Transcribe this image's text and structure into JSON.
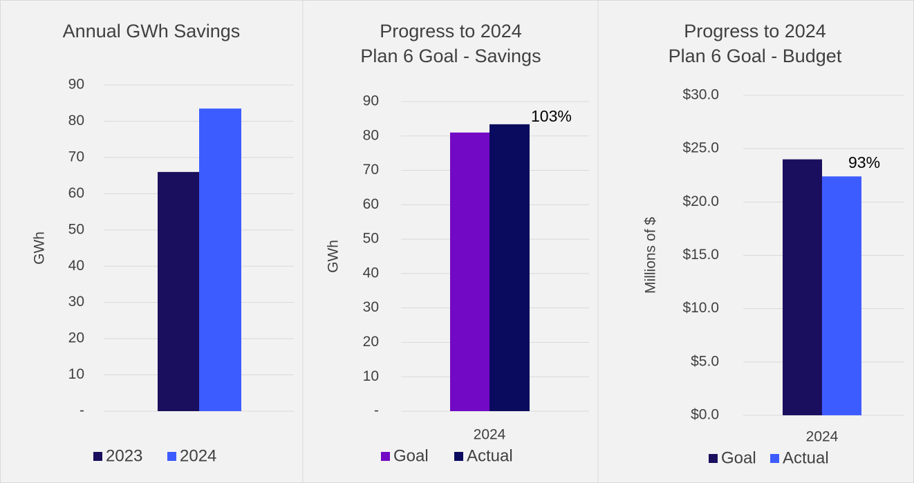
{
  "chart_data": [
    {
      "type": "bar",
      "title": [
        "Annual GWh Savings"
      ],
      "y_label": "GWh",
      "categories": [
        null
      ],
      "series": [
        {
          "name": "2023",
          "color": "#1a0f5e",
          "values": [
            66
          ]
        },
        {
          "name": "2024",
          "color": "#3d5cff",
          "values": [
            83.5
          ]
        }
      ],
      "ylim": [
        0,
        90
      ],
      "yticks": [
        {
          "value": 0,
          "label": "-"
        },
        10,
        20,
        30,
        40,
        50,
        60,
        70,
        80,
        90
      ],
      "grid": true
    },
    {
      "type": "bar",
      "title": [
        "Progress to 2024",
        "Plan 6 Goal - Savings"
      ],
      "y_label": "GWh",
      "categories": [
        "2024"
      ],
      "series": [
        {
          "name": "Goal",
          "color": "#7209c5",
          "values": [
            81
          ]
        },
        {
          "name": "Actual",
          "color": "#0a0a5e",
          "values": [
            83.4
          ]
        }
      ],
      "annotation": "103%",
      "ylim": [
        0,
        90
      ],
      "yticks": [
        {
          "value": 0,
          "label": "-"
        },
        10,
        20,
        30,
        40,
        50,
        60,
        70,
        80,
        90
      ],
      "grid": true
    },
    {
      "type": "bar",
      "title": [
        "Progress to 2024",
        "Plan 6 Goal - Budget"
      ],
      "y_label": "Millions of $",
      "categories": [
        "2024"
      ],
      "series": [
        {
          "name": "Goal",
          "color": "#1a0f5e",
          "values": [
            24
          ]
        },
        {
          "name": "Actual",
          "color": "#3d5cff",
          "values": [
            22.4
          ]
        }
      ],
      "annotation": "93%",
      "ylim": [
        0,
        30
      ],
      "yticks": [
        {
          "value": 0,
          "label": "$0.0"
        },
        {
          "value": 5,
          "label": "$5.0"
        },
        {
          "value": 10,
          "label": "$10.0"
        },
        {
          "value": 15,
          "label": "$15.0"
        },
        {
          "value": 20,
          "label": "$20.0"
        },
        {
          "value": 25,
          "label": "$25.0"
        },
        {
          "value": 30,
          "label": "$30.0"
        }
      ],
      "grid": true
    }
  ]
}
